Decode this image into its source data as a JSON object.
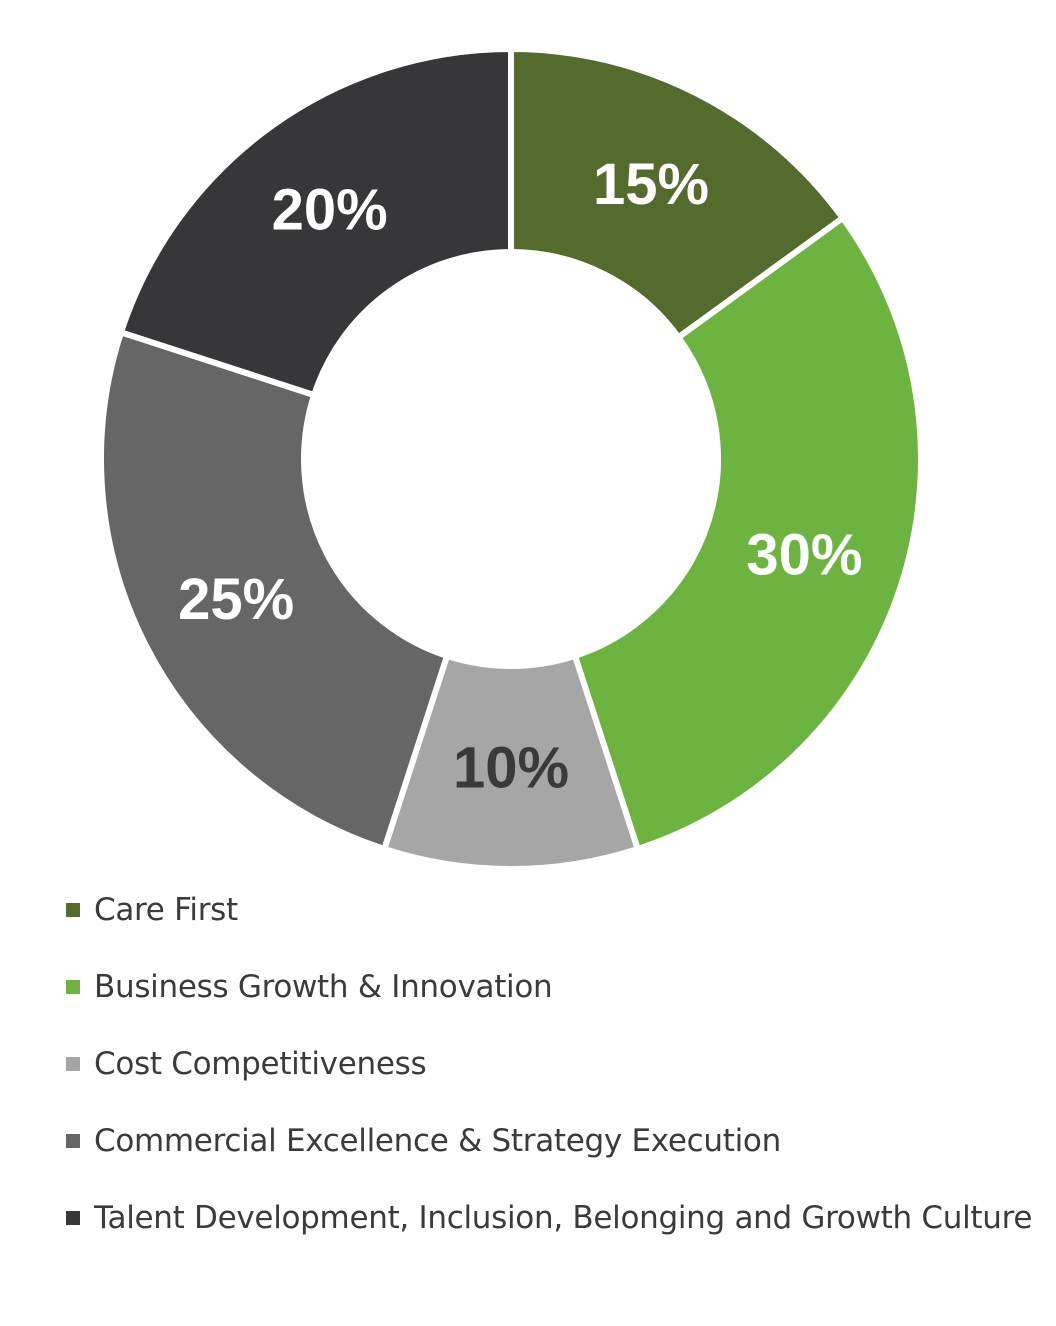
{
  "chart_data": {
    "type": "pie",
    "subtype": "donut",
    "title": "",
    "start_angle_deg": 0,
    "direction": "clockwise",
    "categories": [
      "Care First",
      "Business Growth & Innovation",
      "Cost Competitiveness",
      "Commercial Excellence & Strategy Execution",
      "Talent Development, Inclusion, Belonging and Growth Culture"
    ],
    "values": [
      15,
      30,
      10,
      25,
      20
    ],
    "data_labels": [
      "15%",
      "30%",
      "10%",
      "25%",
      "20%"
    ],
    "colors": [
      "#546b2e",
      "#6cb33f",
      "#a6a6a6",
      "#666666",
      "#373739"
    ],
    "label_colors": [
      "#ffffff",
      "#ffffff",
      "#3a3a3a",
      "#ffffff",
      "#ffffff"
    ],
    "legend_position": "bottom-left",
    "unit": "%"
  },
  "legend": {
    "items": [
      {
        "label": "Care First",
        "color": "#546b2e"
      },
      {
        "label": "Business Growth & Innovation",
        "color": "#6cb33f"
      },
      {
        "label": "Cost Competitiveness",
        "color": "#a6a6a6"
      },
      {
        "label": "Commercial Excellence & Strategy Execution",
        "color": "#666666"
      },
      {
        "label": "Talent Development, Inclusion, Belonging and Growth Culture",
        "color": "#373739"
      }
    ]
  }
}
